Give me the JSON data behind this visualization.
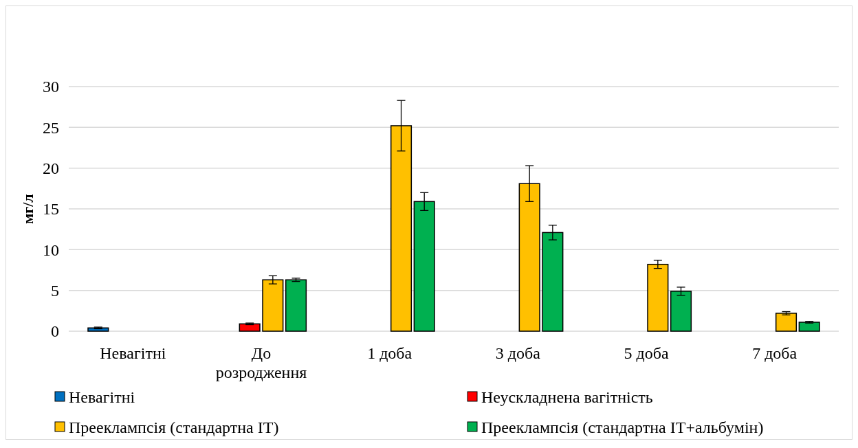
{
  "chart_data": {
    "type": "bar",
    "ylabel": "мг/л",
    "categories": [
      "Невагітні",
      "До розродження",
      "1 доба",
      "3 доба",
      "5 доба",
      "7 доба"
    ],
    "series": [
      {
        "name": "Невагітні",
        "color": "#0070c0",
        "values": [
          0.4,
          null,
          null,
          null,
          null,
          null
        ],
        "errors": [
          0.1,
          null,
          null,
          null,
          null,
          null
        ]
      },
      {
        "name": "Неускладнена вагітність",
        "color": "#ff0000",
        "values": [
          null,
          0.9,
          null,
          null,
          null,
          null
        ],
        "errors": [
          null,
          0.1,
          null,
          null,
          null,
          null
        ]
      },
      {
        "name": "Прееклампсія (стандартна ІТ)",
        "color": "#ffc000",
        "values": [
          null,
          6.3,
          25.2,
          18.1,
          8.2,
          2.2
        ],
        "errors": [
          null,
          0.5,
          3.1,
          2.2,
          0.5,
          0.2
        ]
      },
      {
        "name": "Прееклампсія (стандартна ІТ+альбумін)",
        "color": "#00b050",
        "values": [
          null,
          6.3,
          15.9,
          12.1,
          4.9,
          1.1
        ],
        "errors": [
          null,
          0.2,
          1.1,
          0.9,
          0.5,
          0.1
        ]
      }
    ],
    "ylim": [
      0,
      30
    ],
    "yticks": [
      0,
      5,
      10,
      15,
      20,
      25,
      30
    ],
    "grid": "y",
    "legend": "bottom"
  }
}
